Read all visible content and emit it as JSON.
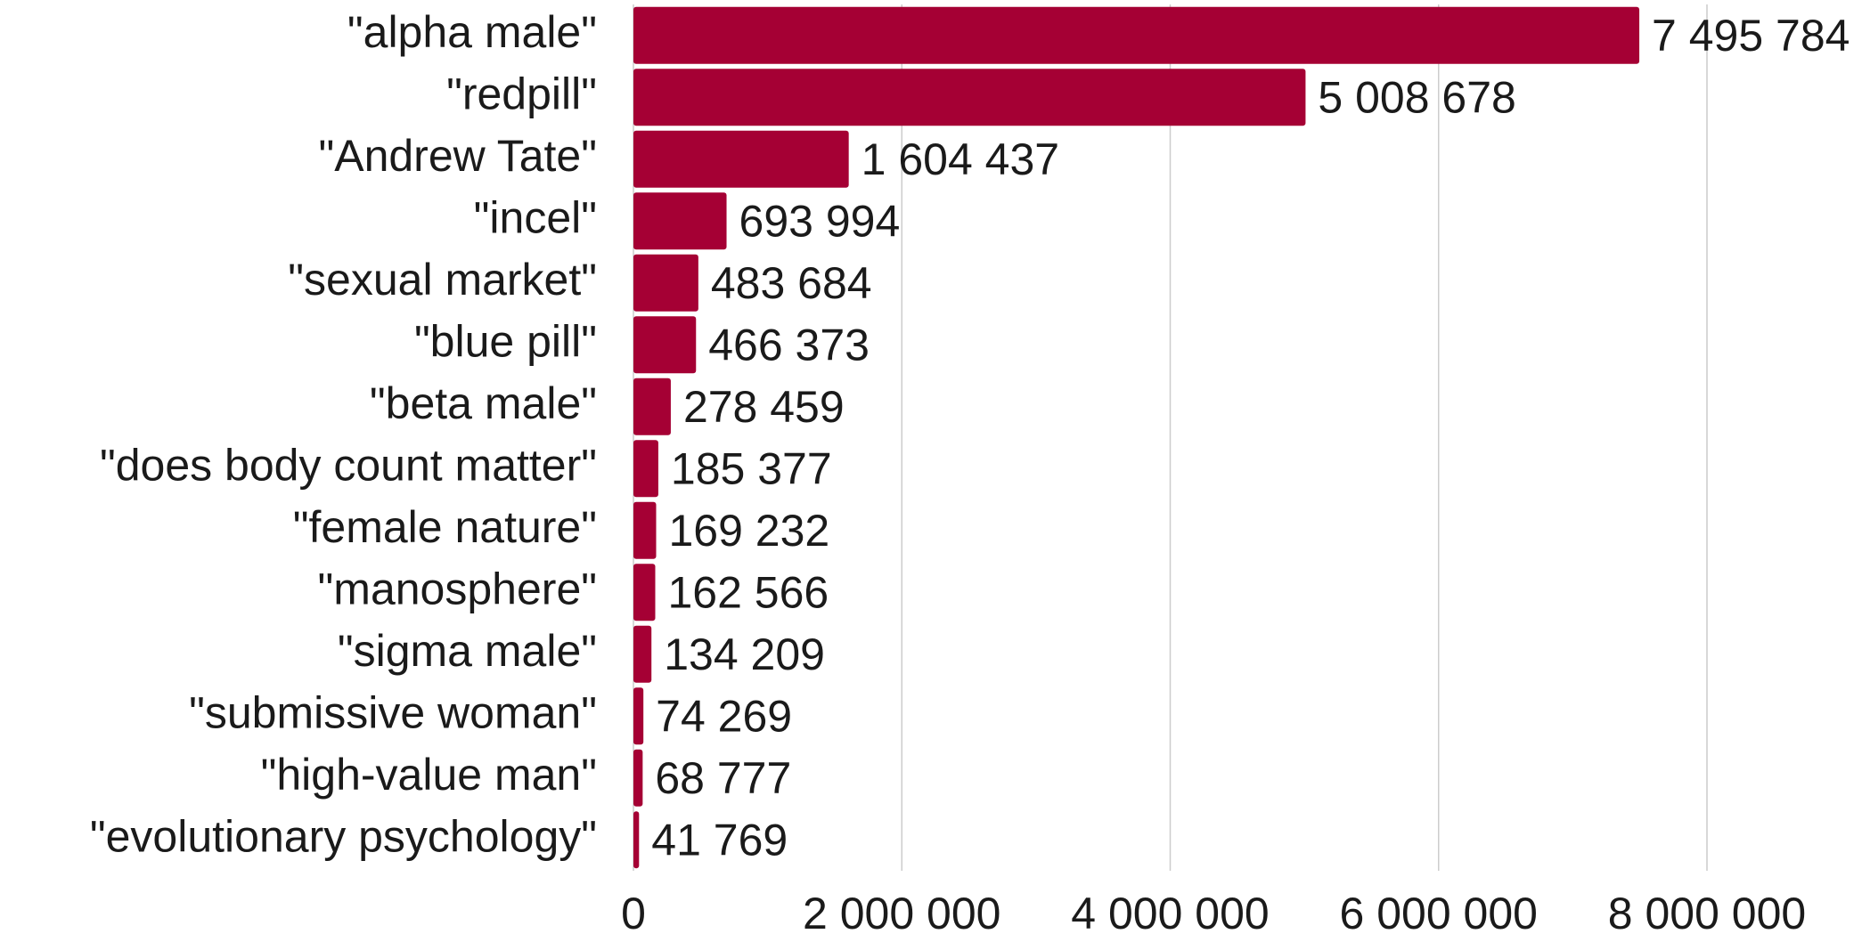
{
  "chart_data": {
    "type": "bar",
    "orientation": "horizontal",
    "categories": [
      "\"alpha male\"",
      "\"redpill\"",
      "\"Andrew Tate\"",
      "\"incel\"",
      "\"sexual market\"",
      "\"blue pill\"",
      "\"beta male\"",
      "\"does body count matter\"",
      "\"female nature\"",
      "\"manosphere\"",
      "\"sigma male\"",
      "\"submissive woman\"",
      "\"high-value man\"",
      "\"evolutionary psychology\""
    ],
    "values": [
      7495784,
      5008678,
      1604437,
      693994,
      483684,
      466373,
      278459,
      185377,
      169232,
      162566,
      134209,
      74269,
      68777,
      41769
    ],
    "value_labels": [
      "7 495 784",
      "5 008 678",
      "1 604 437",
      "693 994",
      "483 684",
      "466 373",
      "278 459",
      "185 377",
      "169 232",
      "162 566",
      "134 209",
      "74 269",
      "68 777",
      "41 769"
    ],
    "color": "#a50034",
    "xlim": [
      0,
      8000000
    ],
    "xticks": [
      0,
      {
        "value": 2000000,
        "label": "2 000 000"
      },
      {
        "value": 4000000,
        "label": "4 000 000"
      },
      {
        "value": 6000000,
        "label": "6 000 000"
      },
      {
        "value": 8000000,
        "label": "8 000 000"
      }
    ],
    "grid": true
  }
}
